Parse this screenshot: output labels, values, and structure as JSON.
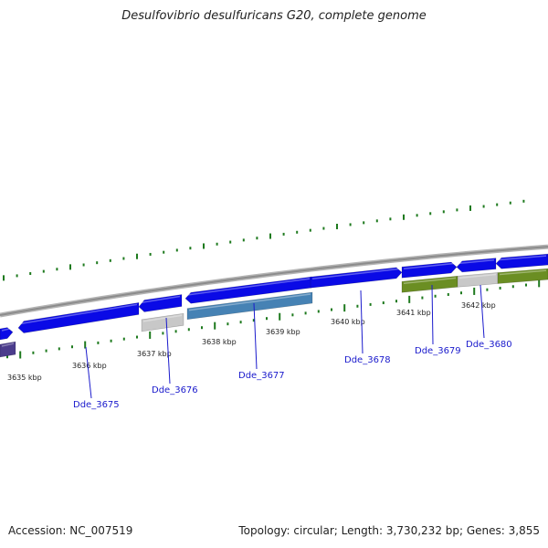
{
  "title": "Desulfovibrio desulfuricans G20, complete genome",
  "footer": {
    "accession": "Accession: NC_007519",
    "topology": "Topology: circular; Length: 3,730,232 bp; Genes: 3,855"
  },
  "colors": {
    "backbone": "#8c8c8c",
    "cds_forward": "#0a0ae6",
    "cds_reverse": "#0a0ae6",
    "gene_green": "#6b8e23",
    "gene_steel": "#4682b4",
    "gene_gray": "#c8c8c8",
    "gene_purple": "#4b3c8c",
    "tick": "#1e7a1e",
    "label_line": "#1a1acc"
  },
  "kbp_labels": [
    {
      "text": "3635 kbp"
    },
    {
      "text": "3636 kbp"
    },
    {
      "text": "3637 kbp"
    },
    {
      "text": "3638 kbp"
    },
    {
      "text": "3639 kbp"
    },
    {
      "text": "3640 kbp"
    },
    {
      "text": "3641 kbp"
    },
    {
      "text": "3642 kbp"
    }
  ],
  "gene_labels": [
    {
      "text": "Dde_3675"
    },
    {
      "text": "Dde_3676"
    },
    {
      "text": "Dde_3677"
    },
    {
      "text": "Dde_3678"
    },
    {
      "text": "Dde_3679"
    },
    {
      "text": "Dde_3680"
    }
  ]
}
